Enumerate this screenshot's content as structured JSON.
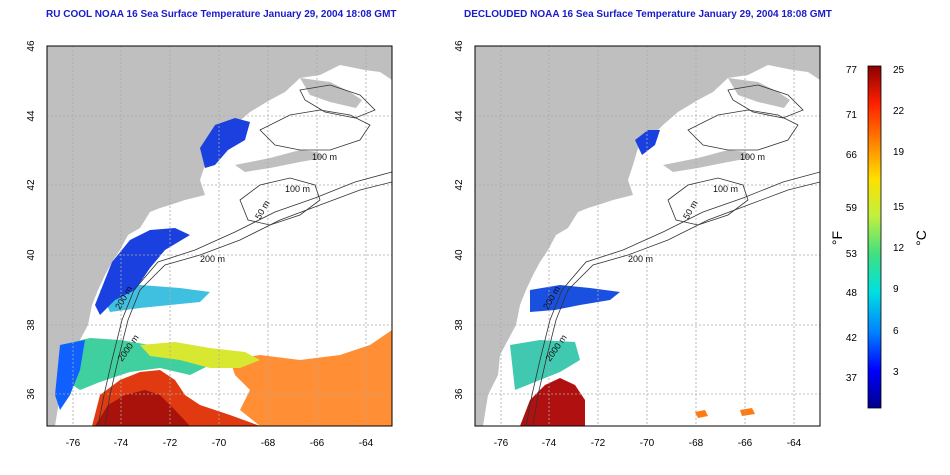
{
  "left_panel": {
    "title": "RU COOL NOAA 16 Sea Surface Temperature January 29, 2004 18:08 GMT",
    "x_ticks": [
      "-76",
      "-74",
      "-72",
      "-70",
      "-68",
      "-66",
      "-64"
    ],
    "y_ticks": [
      "46",
      "44",
      "42",
      "40",
      "38",
      "36"
    ],
    "contour_labels": [
      "100 m",
      "100 m",
      "50 m",
      "200 m",
      "200 m",
      "2000 m"
    ]
  },
  "right_panel": {
    "title": "DECLOUDED NOAA 16 Sea Surface Temperature January 29, 2004 18:08 GMT",
    "x_ticks": [
      "-76",
      "-74",
      "-72",
      "-70",
      "-68",
      "-66",
      "-64"
    ],
    "y_ticks": [
      "46",
      "44",
      "42",
      "40",
      "38",
      "36"
    ],
    "contour_labels": [
      "100 m",
      "100 m",
      "50 m",
      "200 m",
      "200 m",
      "2000 m"
    ]
  },
  "colorbar": {
    "fahrenheit_label": "°F",
    "celsius_label": "°C",
    "fahrenheit_ticks": [
      "77",
      "71",
      "66",
      "59",
      "53",
      "48",
      "42",
      "37"
    ],
    "celsius_ticks": [
      "25",
      "22",
      "19",
      "15",
      "12",
      "9",
      "6",
      "3"
    ],
    "colors": [
      "#00008b",
      "#0000ff",
      "#0080ff",
      "#00e0e0",
      "#40e080",
      "#c0f040",
      "#ffe000",
      "#ff8000",
      "#ff2000",
      "#8b0000"
    ]
  },
  "map_colors": {
    "land": "#bfbfbf",
    "sea_no_data": "#ffffff",
    "contour": "#333333",
    "grid": "#aaaaaa"
  }
}
